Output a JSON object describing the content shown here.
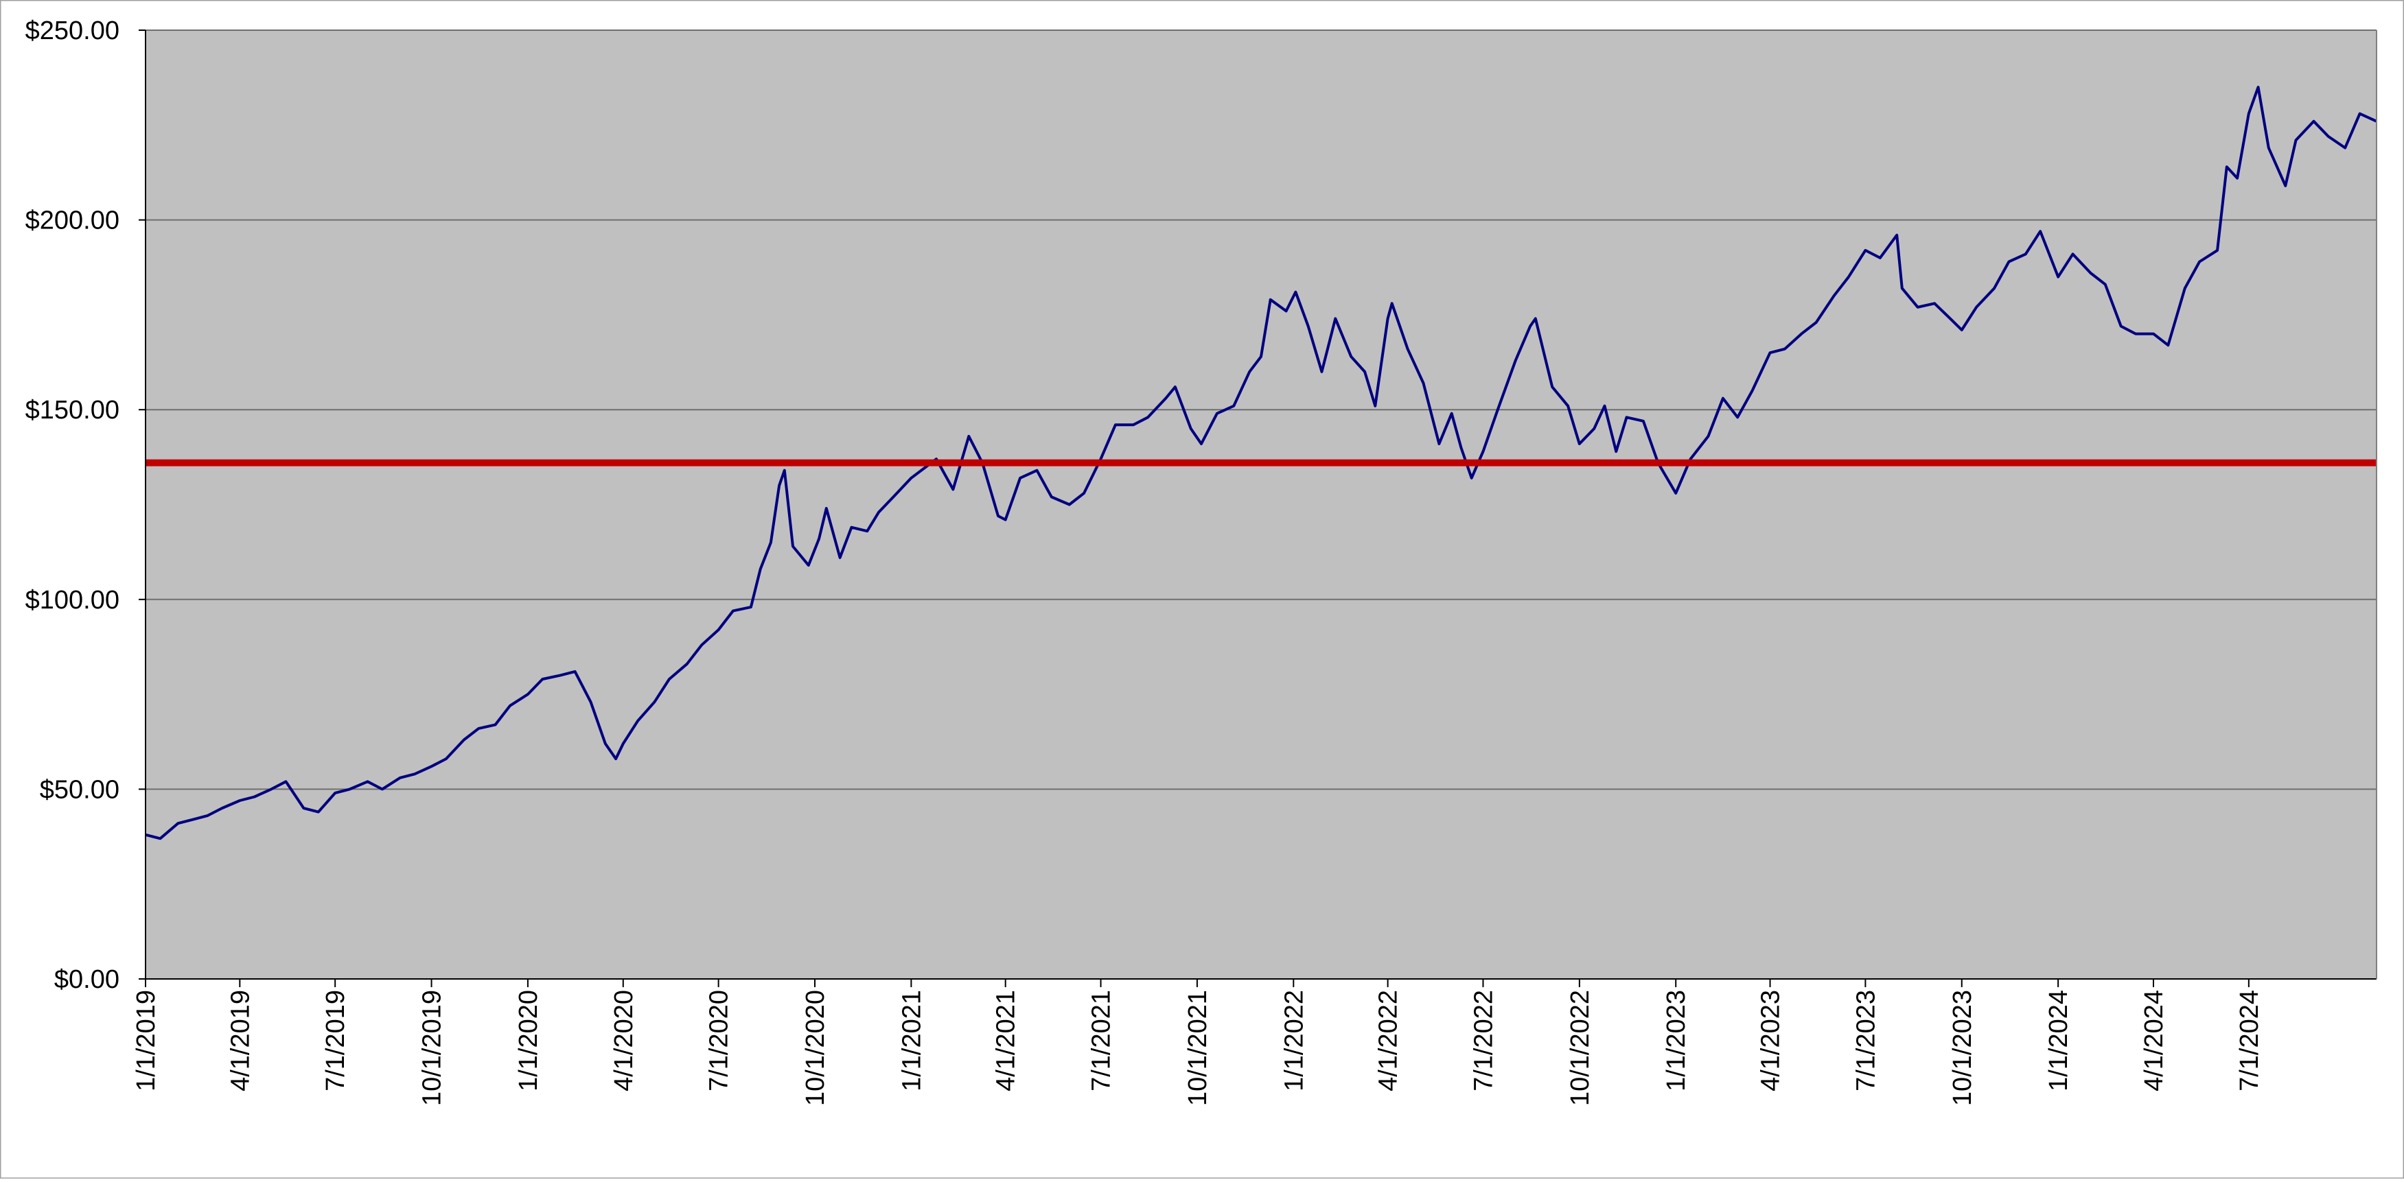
{
  "chart_data": {
    "type": "line",
    "title": "",
    "xlabel": "",
    "ylabel": "",
    "ylim": [
      0,
      250
    ],
    "y_ticks": [
      0,
      50,
      100,
      150,
      200,
      250
    ],
    "y_tick_labels": [
      "$0.00",
      "$50.00",
      "$100.00",
      "$150.00",
      "$200.00",
      "$250.00"
    ],
    "x_range": [
      "2019-01-01",
      "2024-10-31"
    ],
    "x_ticks": [
      "2019-01-01",
      "2019-04-01",
      "2019-07-01",
      "2019-10-01",
      "2020-01-01",
      "2020-04-01",
      "2020-07-01",
      "2020-10-01",
      "2021-01-01",
      "2021-04-01",
      "2021-07-01",
      "2021-10-01",
      "2022-01-01",
      "2022-04-01",
      "2022-07-01",
      "2022-10-01",
      "2023-01-01",
      "2023-04-01",
      "2023-07-01",
      "2023-10-01",
      "2024-01-01",
      "2024-04-01",
      "2024-07-01"
    ],
    "x_tick_labels": [
      "1/1/2019",
      "4/1/2019",
      "7/1/2019",
      "10/1/2019",
      "1/1/2020",
      "4/1/2020",
      "7/1/2020",
      "10/1/2020",
      "1/1/2021",
      "4/1/2021",
      "7/1/2021",
      "10/1/2021",
      "1/1/2022",
      "4/1/2022",
      "7/1/2022",
      "10/1/2022",
      "1/1/2023",
      "4/1/2023",
      "7/1/2023",
      "10/1/2023",
      "1/1/2024",
      "4/1/2024",
      "7/1/2024"
    ],
    "grid": "horizontal",
    "legend": "none",
    "colors": {
      "plot_background": "#c0c0c0",
      "series_line": "#000080",
      "reference_line": "#c00000",
      "gridline": "#6f6f6f"
    },
    "reference_line": {
      "y": 136
    },
    "series": [
      {
        "points": [
          [
            "2019-01-01",
            38
          ],
          [
            "2019-01-15",
            37
          ],
          [
            "2019-02-01",
            41
          ],
          [
            "2019-02-15",
            42
          ],
          [
            "2019-03-01",
            43
          ],
          [
            "2019-03-15",
            45
          ],
          [
            "2019-04-01",
            47
          ],
          [
            "2019-04-15",
            48
          ],
          [
            "2019-05-01",
            50
          ],
          [
            "2019-05-15",
            52
          ],
          [
            "2019-06-01",
            45
          ],
          [
            "2019-06-15",
            44
          ],
          [
            "2019-07-01",
            49
          ],
          [
            "2019-07-15",
            50
          ],
          [
            "2019-08-01",
            52
          ],
          [
            "2019-08-15",
            50
          ],
          [
            "2019-09-01",
            53
          ],
          [
            "2019-09-15",
            54
          ],
          [
            "2019-10-01",
            56
          ],
          [
            "2019-10-15",
            58
          ],
          [
            "2019-11-01",
            63
          ],
          [
            "2019-11-15",
            66
          ],
          [
            "2019-12-01",
            67
          ],
          [
            "2019-12-15",
            72
          ],
          [
            "2020-01-01",
            75
          ],
          [
            "2020-01-15",
            79
          ],
          [
            "2020-02-01",
            80
          ],
          [
            "2020-02-15",
            81
          ],
          [
            "2020-03-01",
            73
          ],
          [
            "2020-03-15",
            62
          ],
          [
            "2020-03-25",
            58
          ],
          [
            "2020-04-01",
            62
          ],
          [
            "2020-04-15",
            68
          ],
          [
            "2020-05-01",
            73
          ],
          [
            "2020-05-15",
            79
          ],
          [
            "2020-06-01",
            83
          ],
          [
            "2020-06-15",
            88
          ],
          [
            "2020-07-01",
            92
          ],
          [
            "2020-07-15",
            97
          ],
          [
            "2020-08-01",
            98
          ],
          [
            "2020-08-10",
            108
          ],
          [
            "2020-08-20",
            115
          ],
          [
            "2020-08-28",
            130
          ],
          [
            "2020-09-02",
            134
          ],
          [
            "2020-09-10",
            114
          ],
          [
            "2020-09-25",
            109
          ],
          [
            "2020-10-05",
            116
          ],
          [
            "2020-10-12",
            124
          ],
          [
            "2020-10-25",
            111
          ],
          [
            "2020-11-05",
            119
          ],
          [
            "2020-11-20",
            118
          ],
          [
            "2020-12-01",
            123
          ],
          [
            "2020-12-15",
            127
          ],
          [
            "2021-01-01",
            132
          ],
          [
            "2021-01-25",
            137
          ],
          [
            "2021-02-10",
            129
          ],
          [
            "2021-02-25",
            143
          ],
          [
            "2021-03-10",
            136
          ],
          [
            "2021-03-25",
            122
          ],
          [
            "2021-04-01",
            121
          ],
          [
            "2021-04-15",
            132
          ],
          [
            "2021-05-01",
            134
          ],
          [
            "2021-05-15",
            127
          ],
          [
            "2021-06-01",
            125
          ],
          [
            "2021-06-15",
            128
          ],
          [
            "2021-07-01",
            137
          ],
          [
            "2021-07-15",
            146
          ],
          [
            "2021-08-01",
            146
          ],
          [
            "2021-08-15",
            148
          ],
          [
            "2021-09-01",
            153
          ],
          [
            "2021-09-10",
            156
          ],
          [
            "2021-09-25",
            145
          ],
          [
            "2021-10-05",
            141
          ],
          [
            "2021-10-20",
            149
          ],
          [
            "2021-11-05",
            151
          ],
          [
            "2021-11-20",
            160
          ],
          [
            "2021-12-01",
            164
          ],
          [
            "2021-12-10",
            179
          ],
          [
            "2021-12-25",
            176
          ],
          [
            "2022-01-03",
            181
          ],
          [
            "2022-01-15",
            172
          ],
          [
            "2022-01-28",
            160
          ],
          [
            "2022-02-10",
            174
          ],
          [
            "2022-02-25",
            164
          ],
          [
            "2022-03-10",
            160
          ],
          [
            "2022-03-20",
            151
          ],
          [
            "2022-04-01",
            174
          ],
          [
            "2022-04-05",
            178
          ],
          [
            "2022-04-20",
            166
          ],
          [
            "2022-05-05",
            157
          ],
          [
            "2022-05-20",
            141
          ],
          [
            "2022-06-01",
            149
          ],
          [
            "2022-06-10",
            140
          ],
          [
            "2022-06-20",
            132
          ],
          [
            "2022-07-01",
            139
          ],
          [
            "2022-07-15",
            150
          ],
          [
            "2022-08-01",
            163
          ],
          [
            "2022-08-15",
            172
          ],
          [
            "2022-08-20",
            174
          ],
          [
            "2022-09-05",
            156
          ],
          [
            "2022-09-20",
            151
          ],
          [
            "2022-10-01",
            141
          ],
          [
            "2022-10-15",
            145
          ],
          [
            "2022-10-25",
            151
          ],
          [
            "2022-11-05",
            139
          ],
          [
            "2022-11-15",
            148
          ],
          [
            "2022-12-01",
            147
          ],
          [
            "2022-12-15",
            136
          ],
          [
            "2023-01-01",
            128
          ],
          [
            "2023-01-15",
            137
          ],
          [
            "2023-02-01",
            143
          ],
          [
            "2023-02-15",
            153
          ],
          [
            "2023-03-01",
            148
          ],
          [
            "2023-03-15",
            155
          ],
          [
            "2023-04-01",
            165
          ],
          [
            "2023-04-15",
            166
          ],
          [
            "2023-05-01",
            170
          ],
          [
            "2023-05-15",
            173
          ],
          [
            "2023-06-01",
            180
          ],
          [
            "2023-06-15",
            185
          ],
          [
            "2023-07-01",
            192
          ],
          [
            "2023-07-15",
            190
          ],
          [
            "2023-07-31",
            196
          ],
          [
            "2023-08-05",
            182
          ],
          [
            "2023-08-20",
            177
          ],
          [
            "2023-09-05",
            178
          ],
          [
            "2023-09-20",
            174
          ],
          [
            "2023-10-01",
            171
          ],
          [
            "2023-10-15",
            177
          ],
          [
            "2023-11-01",
            182
          ],
          [
            "2023-11-15",
            189
          ],
          [
            "2023-12-01",
            191
          ],
          [
            "2023-12-15",
            197
          ],
          [
            "2024-01-01",
            185
          ],
          [
            "2024-01-15",
            191
          ],
          [
            "2024-02-01",
            186
          ],
          [
            "2024-02-15",
            183
          ],
          [
            "2024-03-01",
            172
          ],
          [
            "2024-03-15",
            170
          ],
          [
            "2024-04-01",
            170
          ],
          [
            "2024-04-15",
            167
          ],
          [
            "2024-05-01",
            182
          ],
          [
            "2024-05-15",
            189
          ],
          [
            "2024-06-01",
            192
          ],
          [
            "2024-06-10",
            214
          ],
          [
            "2024-06-20",
            211
          ],
          [
            "2024-07-01",
            228
          ],
          [
            "2024-07-10",
            235
          ],
          [
            "2024-07-20",
            219
          ],
          [
            "2024-08-05",
            209
          ],
          [
            "2024-08-15",
            221
          ],
          [
            "2024-09-01",
            226
          ],
          [
            "2024-09-15",
            222
          ],
          [
            "2024-10-01",
            219
          ],
          [
            "2024-10-15",
            228
          ],
          [
            "2024-10-31",
            226
          ]
        ]
      }
    ]
  }
}
